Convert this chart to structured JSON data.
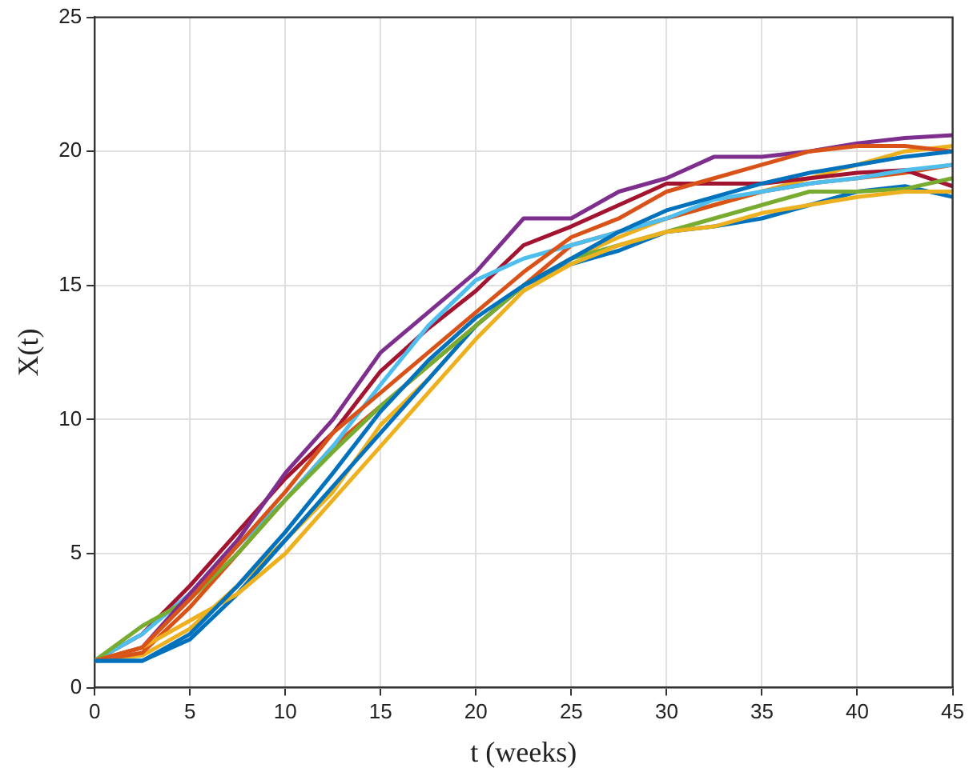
{
  "chart_data": {
    "type": "line",
    "xlabel": "t (weeks)",
    "ylabel": "X(t)",
    "x": [
      0,
      2.5,
      5,
      7.5,
      10,
      12.5,
      15,
      17.5,
      20,
      22.5,
      25,
      27.5,
      30,
      32.5,
      35,
      37.5,
      40,
      42.5,
      45
    ],
    "xlim": [
      0,
      45
    ],
    "xticks": [
      0,
      5,
      10,
      15,
      20,
      25,
      30,
      35,
      40,
      45
    ],
    "ylim": [
      0,
      25
    ],
    "yticks": [
      0,
      5,
      10,
      15,
      20,
      25
    ],
    "grid": true,
    "legend": false,
    "marker": "none",
    "line_style": "solid",
    "series": [
      {
        "color": "#0072bd",
        "values": [
          1,
          1,
          2,
          3.8,
          5.8,
          8,
          10.3,
          12.2,
          13.8,
          15,
          16,
          17,
          17.8,
          18.3,
          18.8,
          19.2,
          19.5,
          19.8,
          20
        ]
      },
      {
        "color": "#d95319",
        "values": [
          1,
          1.5,
          3.3,
          5.3,
          7.3,
          9.5,
          11,
          12.5,
          14,
          15.5,
          16.8,
          17.5,
          18.5,
          19,
          19.5,
          20,
          20.2,
          20.2,
          20
        ]
      },
      {
        "color": "#edb120",
        "values": [
          1,
          1.5,
          2.5,
          3.5,
          5,
          7,
          9,
          11,
          13,
          14.8,
          15.8,
          16.5,
          17,
          17.2,
          17.7,
          18,
          18.3,
          18.5,
          18.5
        ]
      },
      {
        "color": "#7e2f8e",
        "values": [
          1,
          1.5,
          3.5,
          5.5,
          8,
          10,
          12.5,
          14,
          15.5,
          17.5,
          17.5,
          18.5,
          19,
          19.8,
          19.8,
          20,
          20.3,
          20.5,
          20.6
        ]
      },
      {
        "color": "#77ac30",
        "values": [
          1,
          2.3,
          3.3,
          5,
          7,
          8.8,
          10.5,
          12,
          13.5,
          15,
          16,
          16.5,
          17,
          17.5,
          18,
          18.5,
          18.5,
          18.6,
          19
        ]
      },
      {
        "color": "#4dbeee",
        "values": [
          1,
          2,
          3.5,
          5.3,
          7,
          9,
          11.3,
          13.5,
          15.2,
          16,
          16.5,
          17,
          17.5,
          18.2,
          18.5,
          18.8,
          19,
          19.3,
          19.5
        ]
      },
      {
        "color": "#a2142f",
        "values": [
          1,
          2,
          3.8,
          5.8,
          7.8,
          9.5,
          11.8,
          13.4,
          14.8,
          16.5,
          17.2,
          18,
          18.8,
          18.8,
          18.8,
          19,
          19.2,
          19.3,
          18.7
        ]
      },
      {
        "color": "#0072bd",
        "values": [
          1,
          1,
          1.8,
          3.5,
          5.5,
          7.5,
          9.5,
          11.5,
          13.5,
          15,
          15.8,
          16.3,
          17,
          17.2,
          17.5,
          18,
          18.5,
          18.7,
          18.3
        ]
      },
      {
        "color": "#d95319",
        "values": [
          1,
          1.3,
          3,
          5,
          7,
          9,
          10.5,
          12,
          13.5,
          15,
          16.5,
          17,
          17.5,
          18,
          18.5,
          18.8,
          19,
          19.2,
          19.5
        ]
      },
      {
        "color": "#edb120",
        "values": [
          1,
          1.2,
          2.2,
          3.8,
          5.5,
          7.3,
          9.8,
          11.5,
          13.5,
          15,
          16,
          16.8,
          17.5,
          18,
          18.5,
          19,
          19.5,
          20,
          20.2
        ]
      }
    ]
  }
}
